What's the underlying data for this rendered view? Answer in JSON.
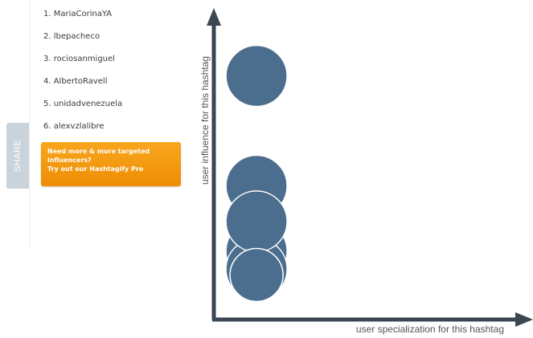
{
  "share": {
    "label": "SHARE"
  },
  "influencers": [
    {
      "rank_name": "1. MariaCorinaYA"
    },
    {
      "rank_name": "2. lbepacheco"
    },
    {
      "rank_name": "3. rociosanmiguel"
    },
    {
      "rank_name": "4. AlbertoRavell"
    },
    {
      "rank_name": "5. unidadvenezuela"
    },
    {
      "rank_name": "6. alexvzlalibre"
    }
  ],
  "promo": {
    "line1": "Need more & more targeted",
    "line2": "influencers?",
    "line3": "Try out our Hashtagify Pro"
  },
  "chart_data": {
    "type": "scatter",
    "xlabel": "user specialization for this hashtag",
    "ylabel": "user influence for this hashtag",
    "bubble_color": "#4b6e8e",
    "points": [
      {
        "x": 0.14,
        "y": 0.82
      },
      {
        "x": 0.14,
        "y": 0.45
      },
      {
        "x": 0.14,
        "y": 0.33
      },
      {
        "x": 0.14,
        "y": 0.23
      },
      {
        "x": 0.14,
        "y": 0.17
      },
      {
        "x": 0.14,
        "y": 0.15
      }
    ],
    "xlim": [
      0,
      1
    ],
    "ylim": [
      0,
      1
    ]
  },
  "colors": {
    "axis": "#3a4652",
    "promo": "#f39a10",
    "share_tab": "#c9d3dc"
  }
}
